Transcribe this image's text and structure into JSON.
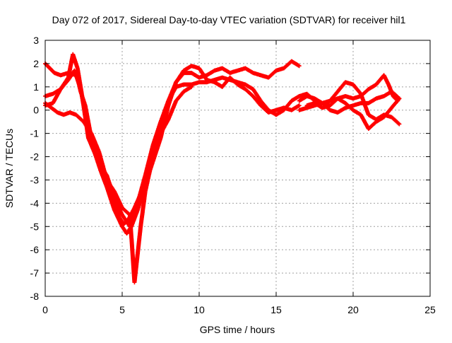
{
  "chart_data": {
    "type": "scatter",
    "title": "Day 072 of 2017, Sidereal Day-to-day VTEC variation (SDTVAR) for receiver hil1",
    "xlabel": "GPS time / hours",
    "ylabel": "SDTVAR / TECUs",
    "xlim": [
      0,
      25
    ],
    "ylim": [
      -8,
      3
    ],
    "x_ticks": [
      0,
      5,
      10,
      15,
      20,
      25
    ],
    "y_ticks": [
      -8,
      -7,
      -6,
      -5,
      -4,
      -3,
      -2,
      -1,
      0,
      1,
      2,
      3
    ],
    "grid": true,
    "marker": "plus",
    "color": "#ff0000",
    "series": [
      {
        "x": [
          0.0,
          0.5,
          1.0,
          1.5,
          1.9,
          2.1,
          2.3,
          2.6,
          3.0,
          3.5,
          4.0,
          4.5,
          4.8,
          5.1,
          5.4,
          5.8,
          6.2,
          6.6,
          7.0,
          7.5,
          8.0,
          8.5,
          9.0,
          9.5,
          10.0,
          10.5,
          11.0,
          11.5,
          12.0,
          12.5,
          13.0,
          13.5,
          14.0,
          14.5,
          15.0,
          15.5,
          16.0,
          16.5
        ],
        "y": [
          0.2,
          0.3,
          0.9,
          1.3,
          1.7,
          1.4,
          0.8,
          0.2,
          -1.2,
          -2.3,
          -3.2,
          -4.0,
          -4.6,
          -4.9,
          -4.7,
          -4.2,
          -3.6,
          -2.6,
          -1.6,
          -0.6,
          0.4,
          1.2,
          1.6,
          1.6,
          1.4,
          1.5,
          1.7,
          1.8,
          1.6,
          1.7,
          1.8,
          1.6,
          1.5,
          1.4,
          1.7,
          1.8,
          2.1,
          1.9
        ]
      },
      {
        "x": [
          0.0,
          0.5,
          1.0,
          1.5,
          1.8,
          2.1,
          2.4,
          2.8,
          3.2,
          3.6,
          4.0,
          4.5,
          5.0,
          5.3,
          5.6,
          6.0,
          6.5,
          7.0,
          7.5,
          8.0,
          8.5,
          9.0,
          9.5,
          10.0,
          10.5,
          11.0,
          11.5,
          12.0,
          12.5,
          13.0,
          13.5,
          14.0,
          14.5,
          15.0,
          15.5,
          16.0,
          16.5
        ],
        "y": [
          0.6,
          0.7,
          0.9,
          1.4,
          2.4,
          1.8,
          0.6,
          -1.2,
          -1.8,
          -2.6,
          -3.3,
          -4.3,
          -5.0,
          -5.3,
          -5.0,
          -4.3,
          -3.2,
          -2.2,
          -1.2,
          0.2,
          1.2,
          1.7,
          1.9,
          1.8,
          1.3,
          1.2,
          1.0,
          1.4,
          1.1,
          0.9,
          0.6,
          0.2,
          -0.1,
          0.0,
          0.1,
          0.0,
          0.2
        ]
      },
      {
        "x": [
          0.0,
          0.3,
          0.6,
          1.0,
          1.5,
          2.0,
          2.3,
          2.7,
          3.0,
          3.5,
          4.0,
          4.5,
          5.0,
          5.5,
          6.0,
          6.5,
          7.0,
          7.5,
          8.0,
          8.5,
          9.0,
          9.5,
          10.0,
          10.5,
          11.0,
          11.5,
          12.0,
          12.5,
          13.0,
          13.5,
          14.0,
          14.5,
          15.0,
          15.5,
          16.0,
          16.5
        ],
        "y": [
          2.0,
          1.8,
          1.6,
          1.5,
          1.6,
          1.5,
          0.9,
          -0.5,
          -1.5,
          -2.3,
          -2.8,
          -3.8,
          -4.5,
          -5.0,
          -4.0,
          -2.8,
          -1.5,
          -0.5,
          0.4,
          1.0,
          1.1,
          1.1,
          1.2,
          1.2,
          1.3,
          1.4,
          1.3,
          1.2,
          1.1,
          0.9,
          0.4,
          0.0,
          -0.2,
          0.0,
          0.4,
          0.6
        ]
      },
      {
        "x": [
          0.0,
          0.4,
          0.8,
          1.2,
          1.6,
          2.0,
          2.5,
          3.0,
          3.5,
          4.0,
          4.5,
          5.0,
          5.5,
          5.8,
          6.0,
          6.2,
          6.5,
          7.0,
          7.5,
          8.0,
          8.5,
          9.0,
          9.5
        ],
        "y": [
          0.3,
          0.1,
          -0.1,
          -0.2,
          -0.1,
          -0.2,
          -0.5,
          -1.0,
          -1.8,
          -3.0,
          -3.5,
          -4.2,
          -4.5,
          -7.4,
          -6.2,
          -5.0,
          -3.5,
          -2.0,
          -1.0,
          -0.4,
          0.4,
          0.8,
          1.0
        ]
      },
      {
        "x": [
          16.5,
          17.0,
          17.5,
          18.0,
          18.5,
          19.0,
          19.5,
          20.0,
          20.5,
          21.0,
          21.5,
          22.0,
          22.3,
          22.6,
          22.9
        ],
        "y": [
          0.4,
          0.6,
          0.5,
          0.3,
          0.4,
          0.5,
          0.6,
          0.5,
          0.6,
          0.9,
          1.1,
          1.5,
          1.1,
          0.6,
          0.4
        ]
      },
      {
        "x": [
          16.5,
          17.0,
          17.5,
          18.0,
          18.5,
          19.0,
          19.5,
          20.0,
          20.5,
          21.0,
          21.5,
          22.0,
          22.5,
          23.0
        ],
        "y": [
          0.0,
          0.1,
          0.2,
          0.3,
          0.0,
          -0.1,
          0.1,
          0.2,
          0.3,
          0.3,
          0.5,
          0.6,
          0.8,
          0.5
        ]
      },
      {
        "x": [
          16.5,
          17.0,
          17.5,
          18.0,
          18.5,
          19.0,
          19.5,
          20.0,
          20.5,
          21.0,
          21.5,
          22.0,
          22.5,
          23.0
        ],
        "y": [
          0.6,
          0.7,
          0.4,
          0.1,
          0.4,
          0.8,
          1.2,
          1.1,
          0.7,
          -0.2,
          -0.4,
          -0.2,
          -0.3,
          -0.6
        ]
      },
      {
        "x": [
          17.0,
          17.5,
          18.0,
          18.5,
          19.0,
          19.5,
          20.0,
          20.5,
          21.0,
          21.5,
          22.0,
          22.5,
          23.0
        ],
        "y": [
          0.2,
          0.3,
          0.1,
          0.2,
          0.5,
          0.3,
          0.0,
          -0.2,
          -0.8,
          -0.5,
          -0.3,
          0.1,
          0.5
        ]
      }
    ]
  }
}
